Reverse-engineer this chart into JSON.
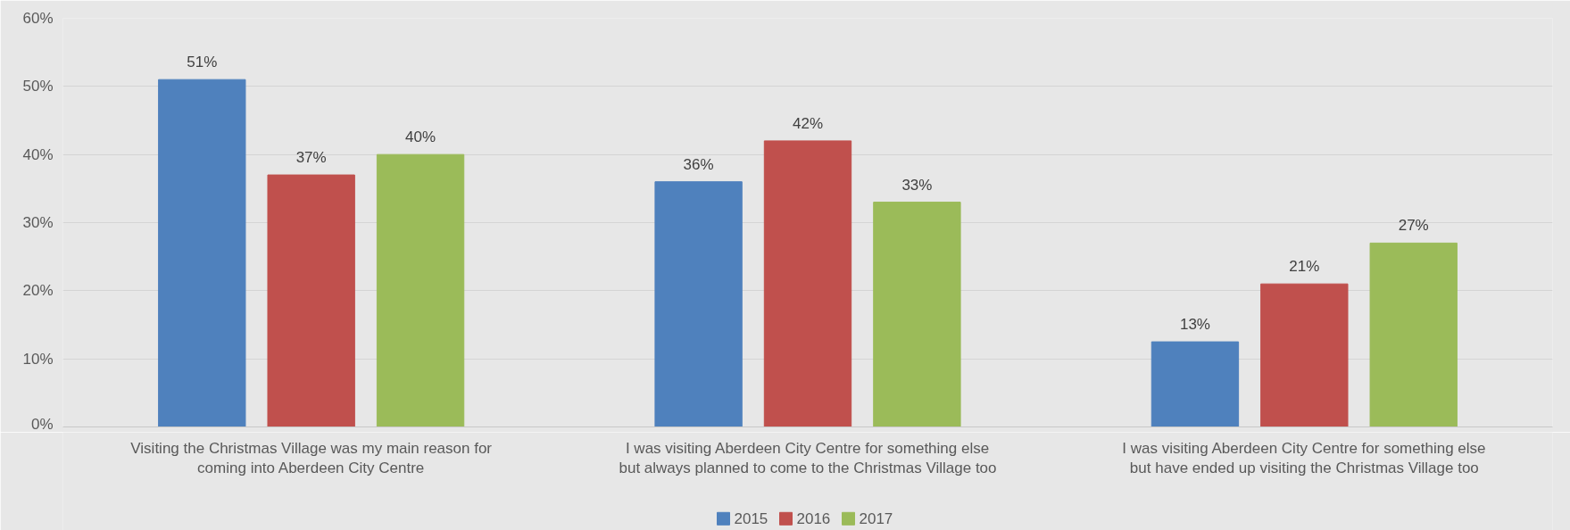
{
  "chart_data": {
    "type": "bar",
    "categories": [
      "Visiting the Christmas Village was my main reason for coming into Aberdeen City Centre",
      "I was visiting Aberdeen City Centre for something else but always planned to come to the Christmas Village too",
      "I was visiting Aberdeen City Centre for something else but have ended up visiting the Christmas Village too"
    ],
    "series": [
      {
        "name": "2015",
        "color": "#4f81bd",
        "values": [
          51,
          36,
          12.5
        ],
        "value_labels": [
          "51%",
          "36%",
          "13%"
        ]
      },
      {
        "name": "2016",
        "color": "#c0504d",
        "values": [
          37,
          42,
          21
        ],
        "value_labels": [
          "37%",
          "42%",
          "21%"
        ]
      },
      {
        "name": "2017",
        "color": "#9bbb59",
        "values": [
          40.0,
          33.0,
          27.0
        ],
        "value_labels": [
          "40%",
          "33%",
          "27%"
        ]
      }
    ],
    "ylim": [
      0,
      60
    ],
    "yticks": [
      {
        "value": 0,
        "label": "0%"
      },
      {
        "value": 10,
        "label": "10%"
      },
      {
        "value": 20,
        "label": "20%"
      },
      {
        "value": 30,
        "label": "30%"
      },
      {
        "value": 40,
        "label": "40%"
      },
      {
        "value": 50,
        "label": "50%"
      },
      {
        "value": 60,
        "label": "60%"
      }
    ],
    "grid": "y",
    "legend": "bottom"
  }
}
